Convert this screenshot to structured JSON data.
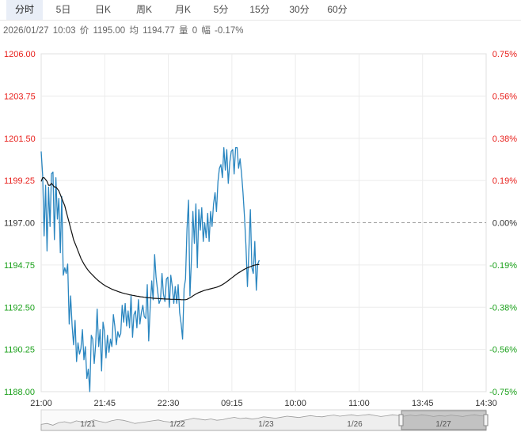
{
  "tabs": [
    {
      "label": "分时",
      "active": true
    },
    {
      "label": "5日",
      "active": false
    },
    {
      "label": "日K",
      "active": false
    },
    {
      "label": "周K",
      "active": false
    },
    {
      "label": "月K",
      "active": false
    },
    {
      "label": "5分",
      "active": false
    },
    {
      "label": "15分",
      "active": false
    },
    {
      "label": "30分",
      "active": false
    },
    {
      "label": "60分",
      "active": false
    }
  ],
  "info": {
    "datetime": "2026/01/27",
    "time": "10:03",
    "price_label": "价",
    "price": "1195.00",
    "avg_label": "均",
    "avg": "1194.77",
    "vol_label": "量",
    "vol": "0",
    "chg_label": "幅",
    "chg": "-0.17%"
  },
  "colors": {
    "up": "#e8201c",
    "down": "#1aa01a",
    "flat": "#333333",
    "price_line": "#2a86c0",
    "avg_line": "#111111",
    "grid": "#ececec",
    "nav_fill": "#d9d9d9"
  },
  "chart_data": {
    "type": "line",
    "y_left_ticks": [
      "1206.00",
      "1203.75",
      "1201.50",
      "1199.25",
      "1197.00",
      "1194.75",
      "1192.50",
      "1190.25",
      "1188.00"
    ],
    "y_right_ticks": [
      "0.75%",
      "0.56%",
      "0.38%",
      "0.19%",
      "0.00%",
      "-0.19%",
      "-0.38%",
      "-0.56%",
      "-0.75%"
    ],
    "ylim": [
      1188.0,
      1206.0
    ],
    "base_price": 1197.0,
    "x_ticks": [
      "21:00",
      "21:45",
      "22:30",
      "09:15",
      "10:00",
      "11:00",
      "13:45",
      "14:30"
    ],
    "session_fraction_elapsed": 0.49,
    "series": [
      {
        "name": "price",
        "values": [
          1200.8,
          1199.5,
          1196.3,
          1199.0,
          1195.5,
          1198.9,
          1196.8,
          1199.6,
          1199.7,
          1196.1,
          1199.4,
          1197.2,
          1198.3,
          1195.4,
          1198.4,
          1194.2,
          1194.6,
          1194.3,
          1194.8,
          1191.6,
          1193.1,
          1191.5,
          1190.5,
          1191.8,
          1189.6,
          1190.6,
          1190.0,
          1190.3,
          1191.3,
          1189.7,
          1190.4,
          1188.7,
          1189.2,
          1188.0,
          1191.0,
          1190.8,
          1189.5,
          1190.5,
          1192.4,
          1190.4,
          1191.3,
          1189.1,
          1191.7,
          1191.2,
          1189.8,
          1191.0,
          1190.1,
          1190.8,
          1190.4,
          1192.1,
          1191.5,
          1190.5,
          1191.2,
          1190.9,
          1191.1,
          1192.6,
          1191.7,
          1192.7,
          1191.5,
          1192.3,
          1191.4,
          1193.1,
          1190.9,
          1192.1,
          1192.3,
          1191.4,
          1192.9,
          1191.6,
          1192.2,
          1192.6,
          1192.0,
          1191.9,
          1193.7,
          1190.7,
          1192.5,
          1193.9,
          1192.9,
          1195.3,
          1194.1,
          1193.4,
          1192.7,
          1192.9,
          1194.3,
          1193.2,
          1192.8,
          1194.0,
          1194.1,
          1192.5,
          1194.2,
          1193.6,
          1192.7,
          1193.6,
          1192.7,
          1193.7,
          1192.2,
          1191.6,
          1190.8,
          1193.5,
          1194.0,
          1196.7,
          1198.2,
          1193.1,
          1195.1,
          1197.6,
          1195.9,
          1198.0,
          1194.6,
          1197.7,
          1196.6,
          1197.8,
          1196.0,
          1197.0,
          1196.2,
          1197.5,
          1196.0,
          1197.6,
          1196.8,
          1198.0,
          1198.6,
          1197.6,
          1199.2,
          1199.9,
          1200.1,
          1199.4,
          1201.0,
          1199.8,
          1200.9,
          1199.1,
          1200.2,
          1200.8,
          1200.9,
          1199.6,
          1201.0,
          1201.0,
          1199.9,
          1200.4,
          1199.6,
          1198.6,
          1197.3,
          1195.8,
          1193.6,
          1195.6,
          1197.7,
          1194.6,
          1194.3,
          1196.0,
          1193.4,
          1194.8,
          1195.0
        ],
        "color": "#2a86c0"
      },
      {
        "name": "avg",
        "values": [
          1199.2,
          1199.4,
          1199.4,
          1199.3,
          1199.2,
          1199.0,
          1199.0,
          1199.1,
          1199.0,
          1198.9,
          1198.9,
          1198.8,
          1198.7,
          1198.5,
          1198.3,
          1198.1,
          1197.9,
          1197.6,
          1197.3,
          1197.0,
          1196.7,
          1196.4,
          1196.1,
          1195.9,
          1195.7,
          1195.5,
          1195.3,
          1195.1,
          1194.95,
          1194.8,
          1194.68,
          1194.56,
          1194.46,
          1194.36,
          1194.28,
          1194.2,
          1194.12,
          1194.04,
          1193.97,
          1193.9,
          1193.84,
          1193.78,
          1193.72,
          1193.67,
          1193.62,
          1193.58,
          1193.54,
          1193.5,
          1193.46,
          1193.43,
          1193.4,
          1193.37,
          1193.34,
          1193.31,
          1193.29,
          1193.26,
          1193.24,
          1193.22,
          1193.2,
          1193.18,
          1193.16,
          1193.15,
          1193.13,
          1193.12,
          1193.1,
          1193.09,
          1193.08,
          1193.06,
          1193.05,
          1193.04,
          1193.03,
          1193.02,
          1193.01,
          1193.0,
          1193.0,
          1192.99,
          1192.98,
          1192.97,
          1192.97,
          1192.96,
          1192.96,
          1192.95,
          1192.95,
          1192.94,
          1192.94,
          1192.93,
          1192.93,
          1192.93,
          1192.92,
          1192.92,
          1192.92,
          1192.92,
          1192.91,
          1192.91,
          1192.91,
          1192.9,
          1192.9,
          1192.9,
          1192.9,
          1192.92,
          1192.96,
          1193.0,
          1193.05,
          1193.1,
          1193.15,
          1193.2,
          1193.24,
          1193.28,
          1193.31,
          1193.34,
          1193.37,
          1193.4,
          1193.42,
          1193.44,
          1193.46,
          1193.48,
          1193.5,
          1193.52,
          1193.54,
          1193.56,
          1193.59,
          1193.62,
          1193.66,
          1193.7,
          1193.75,
          1193.8,
          1193.86,
          1193.92,
          1193.98,
          1194.04,
          1194.1,
          1194.16,
          1194.22,
          1194.28,
          1194.33,
          1194.38,
          1194.43,
          1194.48,
          1194.52,
          1194.56,
          1194.6,
          1194.63,
          1194.66,
          1194.69,
          1194.72,
          1194.74,
          1194.76,
          1194.77,
          1194.77
        ],
        "color": "#111111"
      }
    ]
  },
  "navigator": {
    "dates": [
      "1/21",
      "1/22",
      "1/23",
      "1/26",
      "1/27"
    ],
    "spark": [
      0.35,
      0.4,
      0.3,
      0.45,
      0.5,
      0.42,
      0.55,
      0.48,
      0.5,
      0.6,
      0.52,
      0.45,
      0.55,
      0.62,
      0.58,
      0.5,
      0.4,
      0.45,
      0.5,
      0.55,
      0.6,
      0.52,
      0.48,
      0.5,
      0.56,
      0.62,
      0.7,
      0.65,
      0.6,
      0.66,
      0.58,
      0.62,
      0.7,
      0.75,
      0.68,
      0.72,
      0.65,
      0.7,
      0.78,
      0.74,
      0.7,
      0.76,
      0.82,
      0.78,
      0.74,
      0.8,
      0.85,
      0.8,
      0.78,
      0.84,
      0.88,
      0.82,
      0.86,
      0.9,
      0.84,
      0.88,
      0.92,
      0.86,
      0.8,
      0.84,
      0.9,
      0.86,
      0.82,
      0.88,
      0.84,
      0.9,
      0.86,
      0.8,
      0.85,
      0.82,
      0.88,
      0.84,
      0.8,
      0.86,
      0.9,
      0.84,
      0.82
    ]
  }
}
